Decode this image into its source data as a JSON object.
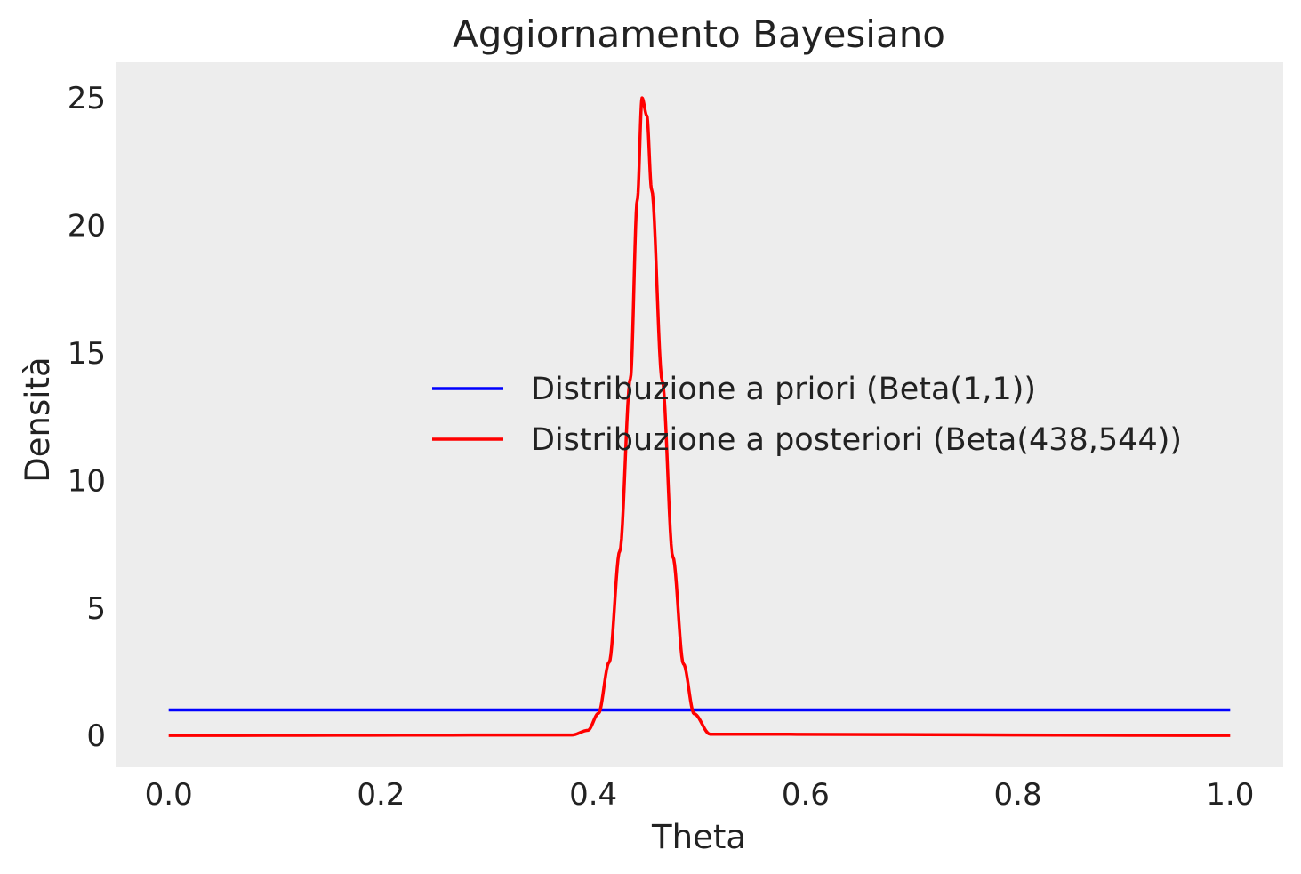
{
  "chart_data": {
    "type": "line",
    "title": "Aggiornamento Bayesiano",
    "xlabel": "Theta",
    "ylabel": "Densità",
    "xlim": [
      -0.05,
      1.05
    ],
    "ylim": [
      -1.25,
      26.4
    ],
    "xticks": [
      "0.0",
      "0.2",
      "0.4",
      "0.6",
      "0.8",
      "1.0"
    ],
    "yticks": [
      "0",
      "5",
      "10",
      "15",
      "20",
      "25"
    ],
    "grid": false,
    "legend_position": "center-right",
    "background": "#EDEDED",
    "series": [
      {
        "name": "Distribuzione a priori (Beta(1,1))",
        "color": "#0000FF",
        "x": [
          0.0,
          0.2,
          0.4,
          0.6,
          0.8,
          1.0
        ],
        "y": [
          1,
          1,
          1,
          1,
          1,
          1
        ]
      },
      {
        "name": "Distribuzione a posteriori (Beta(438,544))",
        "color": "#FF0000",
        "x": [
          0.0,
          0.38,
          0.395,
          0.405,
          0.415,
          0.425,
          0.435,
          0.4415,
          0.446,
          0.4505,
          0.455,
          0.465,
          0.475,
          0.485,
          0.495,
          0.51,
          1.0
        ],
        "y": [
          0,
          0.02,
          0.2,
          0.87,
          2.87,
          7.23,
          14.0,
          21.0,
          25.0,
          24.3,
          21.4,
          13.9,
          7.0,
          2.8,
          0.85,
          0.05,
          0
        ]
      }
    ]
  }
}
